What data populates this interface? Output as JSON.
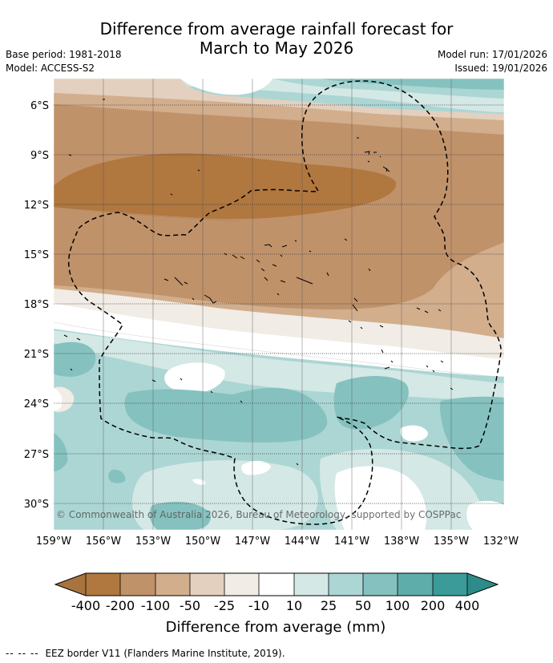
{
  "title": {
    "line1": "Difference from average rainfall forecast for",
    "line2": "March to May 2026"
  },
  "meta": {
    "base_period": "Base period: 1981-2018",
    "model": "Model: ACCESS-S2",
    "model_run": "Model run: 17/01/2026",
    "issued": "Issued: 19/01/2026"
  },
  "map": {
    "lat_labels": [
      "6°S",
      "9°S",
      "12°S",
      "15°S",
      "18°S",
      "21°S",
      "24°S",
      "27°S",
      "30°S"
    ],
    "lon_labels": [
      "159°W",
      "156°W",
      "153°W",
      "150°W",
      "147°W",
      "144°W",
      "141°W",
      "138°W",
      "135°W",
      "132°W"
    ],
    "copyright": "© Commonwealth of Australia 2026, Bureau of Meteorology, supported by COSPPac"
  },
  "legend": {
    "title": "Difference from average (mm)",
    "tick_labels": [
      "-400",
      "-200",
      "-100",
      "-50",
      "-25",
      "-10",
      "10",
      "25",
      "50",
      "100",
      "200",
      "400"
    ],
    "colors": [
      "#a8733f",
      "#b0773f",
      "#c0926a",
      "#d2ae8d",
      "#e4d0be",
      "#f1ece5",
      "#ffffff",
      "#d4e8e6",
      "#acd6d4",
      "#85c2bf",
      "#5fadab",
      "#3a9b98",
      "#2d8c89"
    ]
  },
  "footer": {
    "line_symbol": "-- -- --",
    "text": "EEZ border V11 (Flanders Marine Institute, 2019)."
  }
}
